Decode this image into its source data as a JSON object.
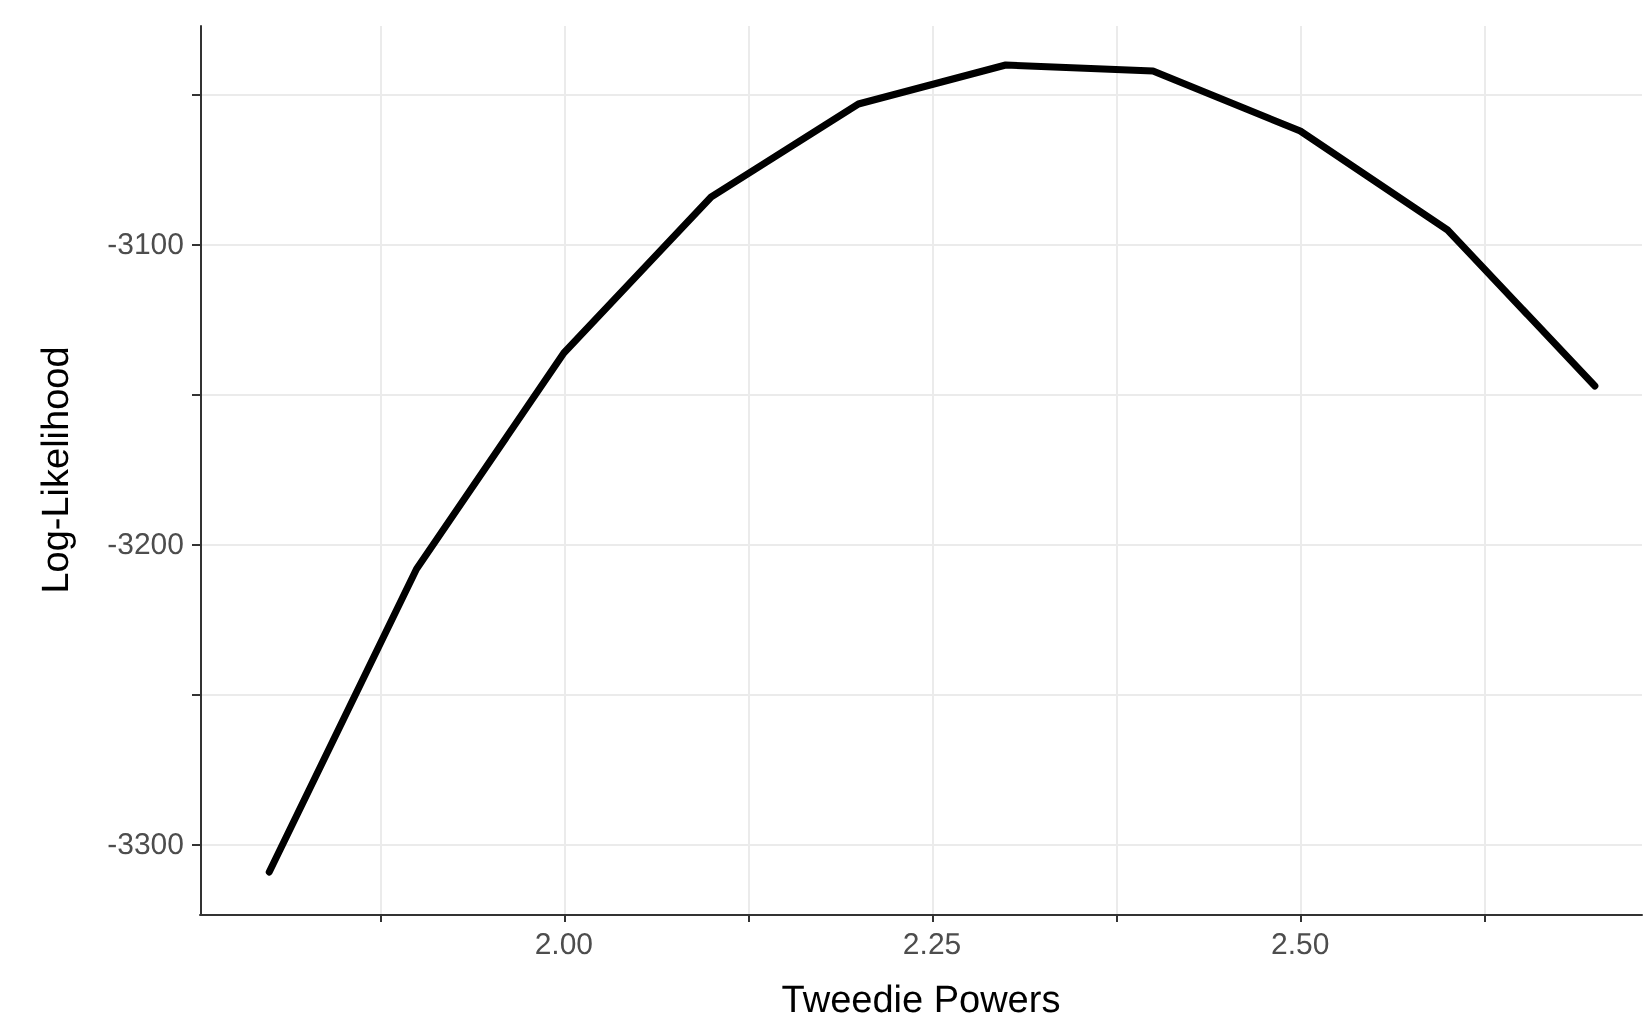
{
  "chart_data": {
    "type": "line",
    "xlabel": "Tweedie Powers",
    "ylabel": "Log-Likelihood",
    "x": [
      1.8,
      1.9,
      2.0,
      2.1,
      2.2,
      2.3,
      2.4,
      2.5,
      2.6,
      2.7
    ],
    "series": [
      {
        "color": "#000000",
        "values": [
          -3309,
          -3208,
          -3136,
          -3084,
          -3053,
          -3040,
          -3042,
          -3062,
          -3095,
          -3147
        ]
      }
    ],
    "xlim": [
      1.753,
      2.732
    ],
    "ylim": [
      -3323,
      -3027
    ],
    "xticks": [
      {
        "value": 1.875,
        "label": null
      },
      {
        "value": 2.0,
        "label": "2.00"
      },
      {
        "value": 2.125,
        "label": null
      },
      {
        "value": 2.25,
        "label": "2.25"
      },
      {
        "value": 2.375,
        "label": null
      },
      {
        "value": 2.5,
        "label": "2.50"
      },
      {
        "value": 2.625,
        "label": null
      }
    ],
    "yticks": [
      {
        "value": -3300,
        "label": "-3300"
      },
      {
        "value": -3250,
        "label": null
      },
      {
        "value": -3200,
        "label": "-3200"
      },
      {
        "value": -3150,
        "label": null
      },
      {
        "value": -3100,
        "label": "-3100"
      },
      {
        "value": -3050,
        "label": null
      }
    ],
    "grid": true,
    "marker": "none",
    "line_style": "solid"
  }
}
